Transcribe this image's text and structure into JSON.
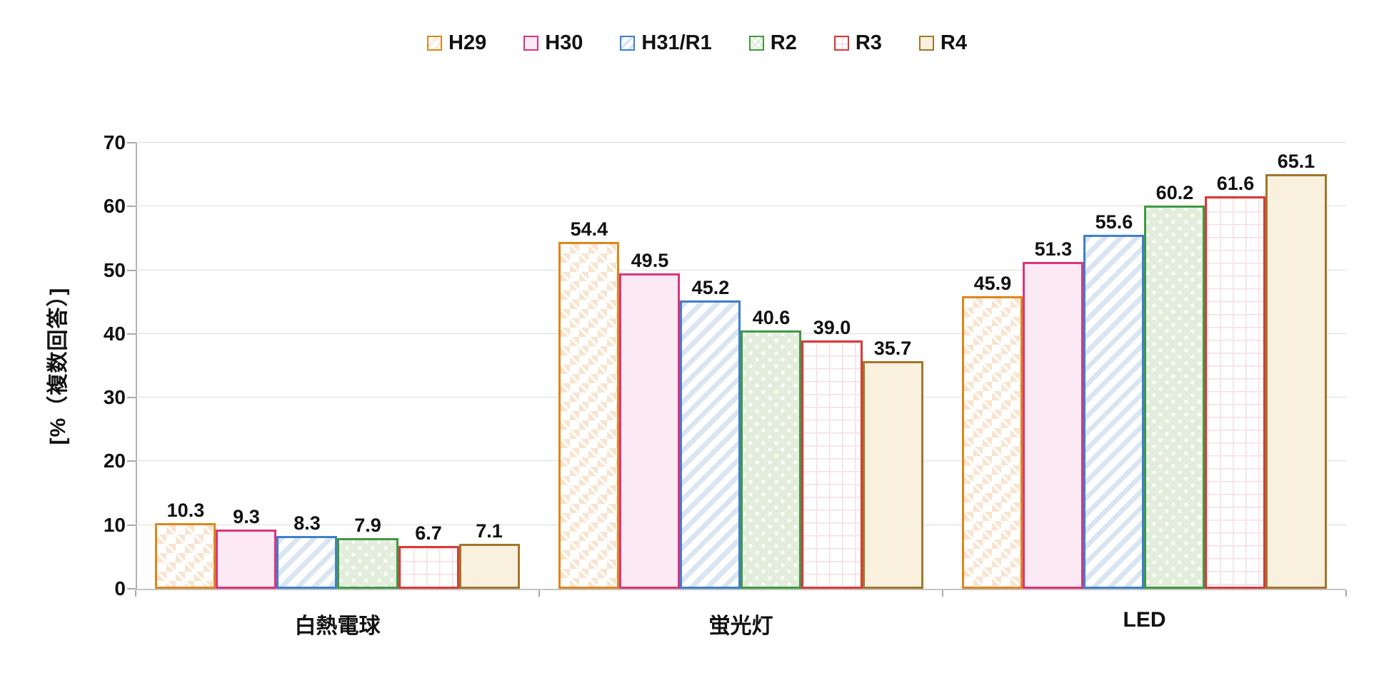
{
  "chart_data": {
    "type": "bar",
    "title": "",
    "categories": [
      "白熱電球",
      "蛍光灯",
      "LED"
    ],
    "series": [
      {
        "name": "H29",
        "values": [
          10.3,
          54.4,
          45.9
        ],
        "border_color": "#DF861B",
        "fill_color": "#F9E4CE",
        "fill_style": "diamond-pattern"
      },
      {
        "name": "H30",
        "values": [
          9.3,
          49.5,
          51.3
        ],
        "border_color": "#D9357C",
        "fill_color": "#FBE9F4",
        "fill_style": "solid"
      },
      {
        "name": "H31/R1",
        "values": [
          8.3,
          45.2,
          55.6
        ],
        "border_color": "#3F7FCE",
        "fill_color": "#D9E6F2",
        "fill_style": "diagonal-stripes"
      },
      {
        "name": "R2",
        "values": [
          7.9,
          40.6,
          60.2
        ],
        "border_color": "#3F9A42",
        "fill_color": "#E3EDDC",
        "fill_style": "white-dots"
      },
      {
        "name": "R3",
        "values": [
          6.7,
          39.0,
          61.6
        ],
        "border_color": "#D93A3A",
        "fill_color": "#F6DEE3",
        "fill_style": "pink-grid"
      },
      {
        "name": "R4",
        "values": [
          7.1,
          35.7,
          65.1
        ],
        "border_color": "#A5752B",
        "fill_color": "#FAF0DE",
        "fill_style": "solid"
      }
    ],
    "xlabel": "",
    "ylabel": "[%（複数回答）]",
    "ylim": [
      0,
      70
    ],
    "y_ticks": [
      "0",
      "10",
      "20",
      "30",
      "40",
      "50",
      "60",
      "70"
    ],
    "grid": true,
    "legend_position": "top",
    "value_label_decimals": 1
  },
  "axis_style": {
    "gridline_color": "#DCDCDC",
    "axis_line_color": "#B2B2B2",
    "tick_color": "#A9A9A9",
    "text_color": "#111111"
  }
}
